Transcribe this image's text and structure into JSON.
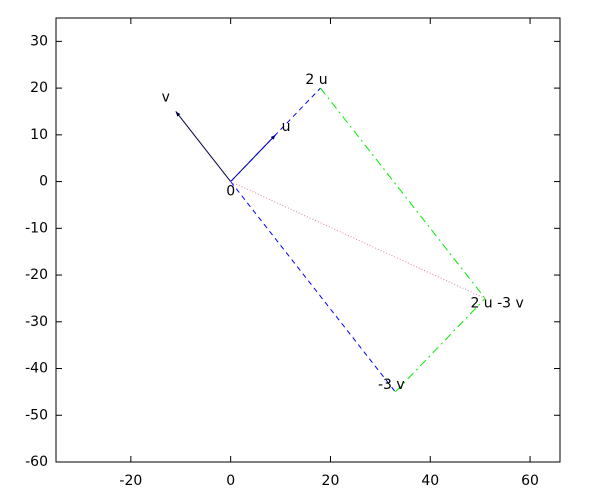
{
  "chart_data": {
    "type": "vector",
    "xlim": [
      -35,
      66
    ],
    "xticks": [
      -20,
      0,
      20,
      40,
      60
    ],
    "ylim": [
      -60,
      35
    ],
    "yticks": [
      -60,
      -50,
      -40,
      -30,
      -20,
      -10,
      0,
      10,
      20,
      30
    ],
    "segments": [
      {
        "x": [
          0,
          9
        ],
        "y": [
          0,
          10
        ],
        "color": "#000080",
        "dash": "solid",
        "arrow": true
      },
      {
        "x": [
          0,
          -11
        ],
        "y": [
          0,
          15
        ],
        "color": "#000040",
        "dash": "solid",
        "arrow": true
      },
      {
        "x": [
          0,
          18
        ],
        "y": [
          0,
          20
        ],
        "color": "#0000ff",
        "dash": "dashed",
        "arrow": false
      },
      {
        "x": [
          0,
          33
        ],
        "y": [
          0,
          -45
        ],
        "color": "#0000ff",
        "dash": "dashed",
        "arrow": false
      },
      {
        "x": [
          18,
          51
        ],
        "y": [
          20,
          -25
        ],
        "color": "#00ee00",
        "dash": "dashdot",
        "arrow": false
      },
      {
        "x": [
          33,
          51
        ],
        "y": [
          -45,
          -25
        ],
        "color": "#00ee00",
        "dash": "dashdot",
        "arrow": false
      },
      {
        "x": [
          0,
          51
        ],
        "y": [
          0,
          -25
        ],
        "color": "#e080a0",
        "dash": "dotted",
        "arrow": false
      }
    ],
    "points": [
      {
        "label": "v",
        "x": -11,
        "y": 15
      },
      {
        "label": "u",
        "x": 9,
        "y": 10
      },
      {
        "label": "0",
        "x": 0,
        "y": 0
      },
      {
        "label": "2 u",
        "x": 18,
        "y": 20
      },
      {
        "label": "-3 v",
        "x": 33,
        "y": -45
      },
      {
        "label": "2 u -3 v",
        "x": 51,
        "y": -25
      }
    ]
  }
}
